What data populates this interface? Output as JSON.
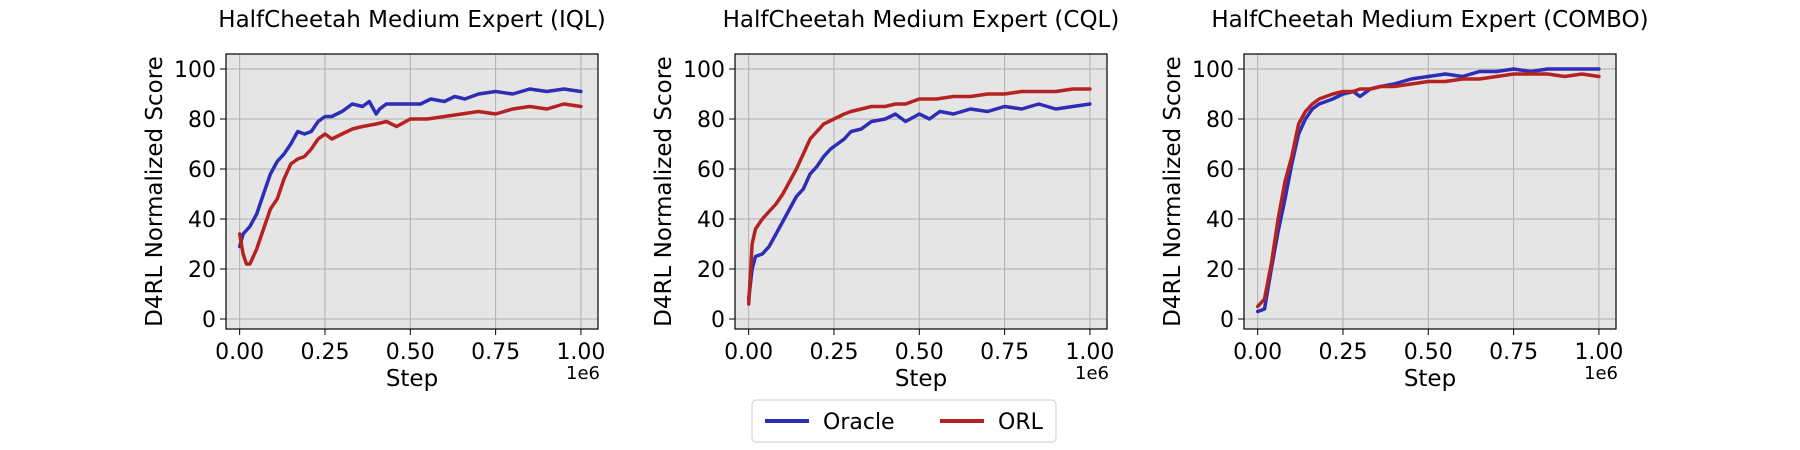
{
  "legend": {
    "placement": "bottom-center",
    "entries": [
      {
        "label": "Oracle",
        "color": "#2d2db5"
      },
      {
        "label": "ORL",
        "color": "#b52222"
      }
    ]
  },
  "colors": {
    "plot_background": "#e5e5e5",
    "grid": "#b0b0b0",
    "oracle": "#2d2db5",
    "orl": "#b52222"
  },
  "chart_data": [
    {
      "type": "line",
      "title": "HalfCheetah Medium Expert (IQL)",
      "xlabel": "Step",
      "ylabel": "D4RL Normalized Score",
      "x_offset_label": "1e6",
      "xlim": [
        -0.04,
        1.05
      ],
      "ylim": [
        -4,
        106
      ],
      "xticks": [
        0.0,
        0.25,
        0.5,
        0.75,
        1.0
      ],
      "xtick_labels": [
        "0.00",
        "0.25",
        "0.50",
        "0.75",
        "1.00"
      ],
      "yticks": [
        0,
        20,
        40,
        60,
        80,
        100
      ],
      "ytick_labels": [
        "0",
        "20",
        "40",
        "60",
        "80",
        "100"
      ],
      "grid": true,
      "series": [
        {
          "name": "Oracle",
          "color": "#2d2db5",
          "x": [
            0.0,
            0.01,
            0.03,
            0.05,
            0.07,
            0.09,
            0.11,
            0.13,
            0.15,
            0.17,
            0.19,
            0.21,
            0.23,
            0.25,
            0.27,
            0.3,
            0.33,
            0.36,
            0.38,
            0.4,
            0.41,
            0.43,
            0.46,
            0.5,
            0.53,
            0.56,
            0.6,
            0.63,
            0.66,
            0.7,
            0.75,
            0.8,
            0.85,
            0.9,
            0.95,
            1.0
          ],
          "y": [
            29,
            34,
            37,
            42,
            50,
            58,
            63,
            66,
            70,
            75,
            74,
            75,
            79,
            81,
            81,
            83,
            86,
            85,
            87,
            82,
            84,
            86,
            86,
            86,
            86,
            88,
            87,
            89,
            88,
            90,
            91,
            90,
            92,
            91,
            92,
            91
          ]
        },
        {
          "name": "ORL",
          "color": "#b52222",
          "x": [
            0.0,
            0.01,
            0.02,
            0.03,
            0.05,
            0.07,
            0.09,
            0.11,
            0.13,
            0.15,
            0.17,
            0.19,
            0.21,
            0.23,
            0.25,
            0.27,
            0.3,
            0.33,
            0.36,
            0.4,
            0.43,
            0.46,
            0.5,
            0.55,
            0.6,
            0.65,
            0.7,
            0.75,
            0.8,
            0.85,
            0.9,
            0.95,
            1.0
          ],
          "y": [
            34,
            26,
            22,
            22,
            28,
            36,
            44,
            48,
            56,
            62,
            64,
            65,
            68,
            72,
            74,
            72,
            74,
            76,
            77,
            78,
            79,
            77,
            80,
            80,
            81,
            82,
            83,
            82,
            84,
            85,
            84,
            86,
            85
          ]
        }
      ]
    },
    {
      "type": "line",
      "title": "HalfCheetah Medium Expert (CQL)",
      "xlabel": "Step",
      "ylabel": "D4RL Normalized Score",
      "x_offset_label": "1e6",
      "xlim": [
        -0.04,
        1.05
      ],
      "ylim": [
        -4,
        106
      ],
      "xticks": [
        0.0,
        0.25,
        0.5,
        0.75,
        1.0
      ],
      "xtick_labels": [
        "0.00",
        "0.25",
        "0.50",
        "0.75",
        "1.00"
      ],
      "yticks": [
        0,
        20,
        40,
        60,
        80,
        100
      ],
      "ytick_labels": [
        "0",
        "20",
        "40",
        "60",
        "80",
        "100"
      ],
      "grid": true,
      "series": [
        {
          "name": "Oracle",
          "color": "#2d2db5",
          "x": [
            0.0,
            0.01,
            0.02,
            0.04,
            0.06,
            0.08,
            0.1,
            0.12,
            0.14,
            0.16,
            0.18,
            0.2,
            0.22,
            0.24,
            0.26,
            0.28,
            0.3,
            0.33,
            0.36,
            0.4,
            0.43,
            0.46,
            0.5,
            0.53,
            0.56,
            0.6,
            0.65,
            0.7,
            0.75,
            0.8,
            0.85,
            0.9,
            0.95,
            1.0
          ],
          "y": [
            8,
            20,
            25,
            26,
            29,
            34,
            39,
            44,
            49,
            52,
            58,
            61,
            65,
            68,
            70,
            72,
            75,
            76,
            79,
            80,
            82,
            79,
            82,
            80,
            83,
            82,
            84,
            83,
            85,
            84,
            86,
            84,
            85,
            86
          ]
        },
        {
          "name": "ORL",
          "color": "#b52222",
          "x": [
            0.0,
            0.01,
            0.02,
            0.04,
            0.06,
            0.08,
            0.1,
            0.12,
            0.14,
            0.16,
            0.18,
            0.2,
            0.22,
            0.25,
            0.28,
            0.3,
            0.33,
            0.36,
            0.4,
            0.43,
            0.46,
            0.5,
            0.55,
            0.6,
            0.65,
            0.7,
            0.75,
            0.8,
            0.85,
            0.9,
            0.95,
            1.0
          ],
          "y": [
            6,
            30,
            36,
            40,
            43,
            46,
            50,
            55,
            60,
            66,
            72,
            75,
            78,
            80,
            82,
            83,
            84,
            85,
            85,
            86,
            86,
            88,
            88,
            89,
            89,
            90,
            90,
            91,
            91,
            91,
            92,
            92
          ]
        }
      ]
    },
    {
      "type": "line",
      "title": "HalfCheetah Medium Expert (COMBO)",
      "xlabel": "Step",
      "ylabel": "D4RL Normalized Score",
      "x_offset_label": "1e6",
      "xlim": [
        -0.04,
        1.05
      ],
      "ylim": [
        -4,
        106
      ],
      "xticks": [
        0.0,
        0.25,
        0.5,
        0.75,
        1.0
      ],
      "xtick_labels": [
        "0.00",
        "0.25",
        "0.50",
        "0.75",
        "1.00"
      ],
      "yticks": [
        0,
        20,
        40,
        60,
        80,
        100
      ],
      "ytick_labels": [
        "0",
        "20",
        "40",
        "60",
        "80",
        "100"
      ],
      "grid": true,
      "series": [
        {
          "name": "Oracle",
          "color": "#2d2db5",
          "x": [
            0.0,
            0.02,
            0.04,
            0.06,
            0.08,
            0.1,
            0.12,
            0.14,
            0.16,
            0.18,
            0.2,
            0.22,
            0.25,
            0.28,
            0.3,
            0.33,
            0.36,
            0.4,
            0.45,
            0.5,
            0.55,
            0.6,
            0.65,
            0.7,
            0.75,
            0.8,
            0.85,
            0.9,
            0.95,
            1.0
          ],
          "y": [
            3,
            4,
            20,
            35,
            48,
            62,
            74,
            80,
            84,
            86,
            87,
            88,
            90,
            91,
            89,
            92,
            93,
            94,
            96,
            97,
            98,
            97,
            99,
            99,
            100,
            99,
            100,
            100,
            100,
            100
          ]
        },
        {
          "name": "ORL",
          "color": "#b52222",
          "x": [
            0.0,
            0.02,
            0.04,
            0.06,
            0.08,
            0.1,
            0.12,
            0.14,
            0.16,
            0.18,
            0.2,
            0.22,
            0.25,
            0.28,
            0.3,
            0.33,
            0.36,
            0.4,
            0.45,
            0.5,
            0.55,
            0.6,
            0.65,
            0.7,
            0.75,
            0.8,
            0.85,
            0.9,
            0.95,
            1.0
          ],
          "y": [
            5,
            8,
            22,
            40,
            55,
            65,
            78,
            83,
            86,
            88,
            89,
            90,
            91,
            91,
            92,
            92,
            93,
            93,
            94,
            95,
            95,
            96,
            96,
            97,
            98,
            98,
            98,
            97,
            98,
            97
          ]
        }
      ]
    }
  ]
}
